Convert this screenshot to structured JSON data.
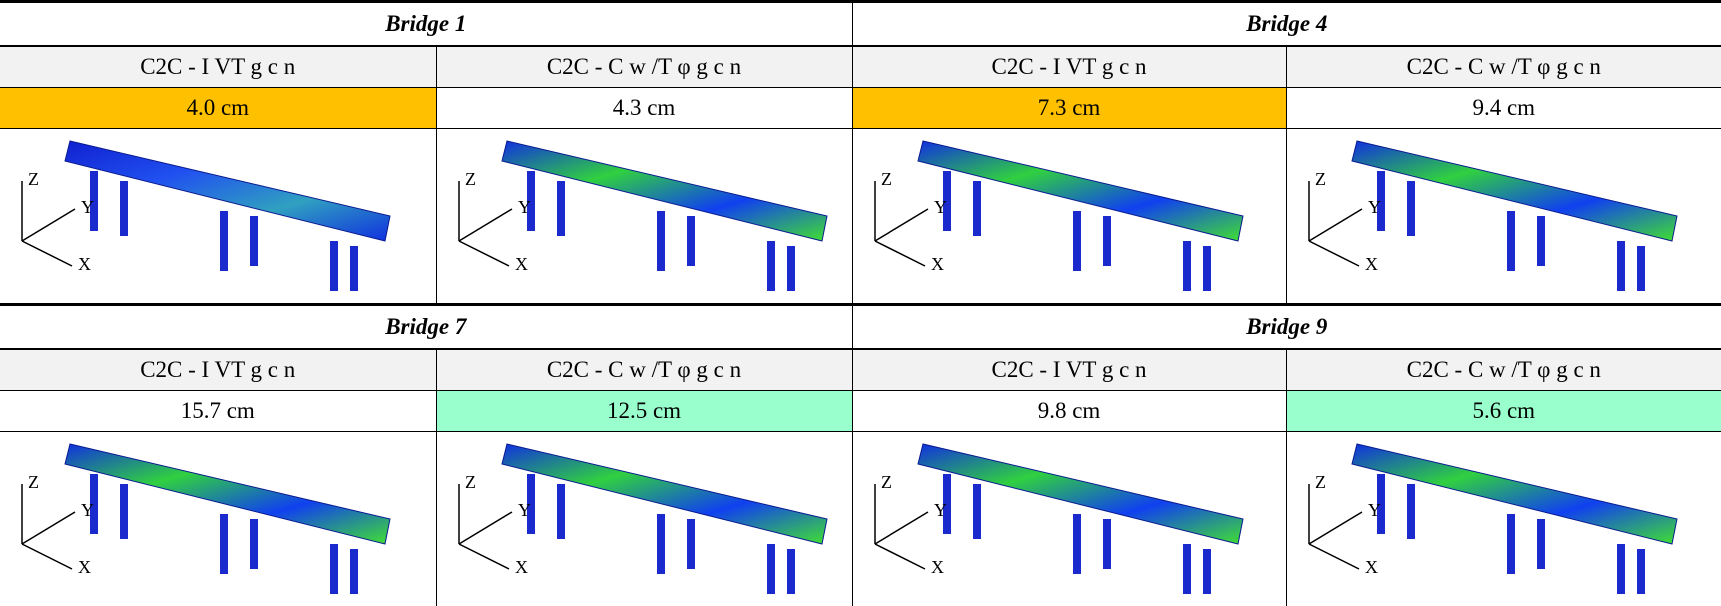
{
  "bridges": [
    {
      "title": "Bridge 1",
      "columns": [
        {
          "header": "C2C - I VT g c n",
          "value": "4.0 cm",
          "color": "#ffc000"
        },
        {
          "header": "C2C - C w /T φ g c n",
          "value": "4.3 cm",
          "color": "#ffffff"
        }
      ]
    },
    {
      "title": "Bridge 4",
      "columns": [
        {
          "header": "C2C - I VT g c n",
          "value": "7.3 cm",
          "color": "#ffc000"
        },
        {
          "header": "C2C - C w /T φ g c n",
          "value": "9.4 cm",
          "color": "#ffffff"
        }
      ]
    },
    {
      "title": "Bridge 7",
      "columns": [
        {
          "header": "C2C - I VT g c n",
          "value": "15.7 cm",
          "color": "#ffffff"
        },
        {
          "header": "C2C - C w /T φ g c n",
          "value": "12.5 cm",
          "color": "#99ffcc"
        }
      ]
    },
    {
      "title": "Bridge 9",
      "columns": [
        {
          "header": "C2C - I VT g c n",
          "value": "9.8 cm",
          "color": "#ffffff"
        },
        {
          "header": "C2C - C w /T φ g c n",
          "value": "5.6 cm",
          "color": "#99ffcc"
        }
      ]
    }
  ],
  "axis_labels": [
    "Z",
    "Y",
    "X"
  ]
}
